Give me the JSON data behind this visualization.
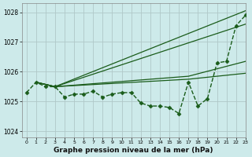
{
  "title": "Graphe pression niveau de la mer (hPa)",
  "bg_color": "#cdeaea",
  "grid_color": "#b0c8c8",
  "line_color": "#1a5c1a",
  "xlim": [
    -0.5,
    23
  ],
  "ylim": [
    1023.8,
    1028.3
  ],
  "yticks": [
    1024,
    1025,
    1026,
    1027,
    1028
  ],
  "xticks": [
    0,
    1,
    2,
    3,
    4,
    5,
    6,
    7,
    8,
    9,
    10,
    11,
    12,
    13,
    14,
    15,
    16,
    17,
    18,
    19,
    20,
    21,
    22,
    23
  ],
  "dashed_series": {
    "x": [
      0,
      1,
      2,
      3,
      4,
      5,
      6,
      7,
      8,
      9,
      10,
      11,
      12,
      13,
      14,
      15,
      16,
      17,
      18,
      19,
      20,
      21,
      22,
      23
    ],
    "y": [
      1025.3,
      1025.65,
      1025.5,
      1025.5,
      1025.15,
      1025.25,
      1025.25,
      1025.35,
      1025.15,
      1025.25,
      1025.3,
      1025.3,
      1024.95,
      1024.85,
      1024.85,
      1024.8,
      1024.6,
      1025.65,
      1024.85,
      1025.1,
      1026.3,
      1026.35,
      1027.55,
      1027.9
    ],
    "marker": "D",
    "markersize": 2.5,
    "linewidth": 1.0
  },
  "solid_lines": [
    {
      "x": [
        1,
        3,
        23
      ],
      "y": [
        1025.65,
        1025.5,
        1028.05
      ]
    },
    {
      "x": [
        1,
        3,
        23
      ],
      "y": [
        1025.65,
        1025.5,
        1027.6
      ]
    },
    {
      "x": [
        1,
        3,
        17,
        23
      ],
      "y": [
        1025.65,
        1025.5,
        1025.85,
        1026.35
      ]
    },
    {
      "x": [
        1,
        3,
        17,
        23
      ],
      "y": [
        1025.65,
        1025.5,
        1025.75,
        1025.95
      ]
    }
  ]
}
